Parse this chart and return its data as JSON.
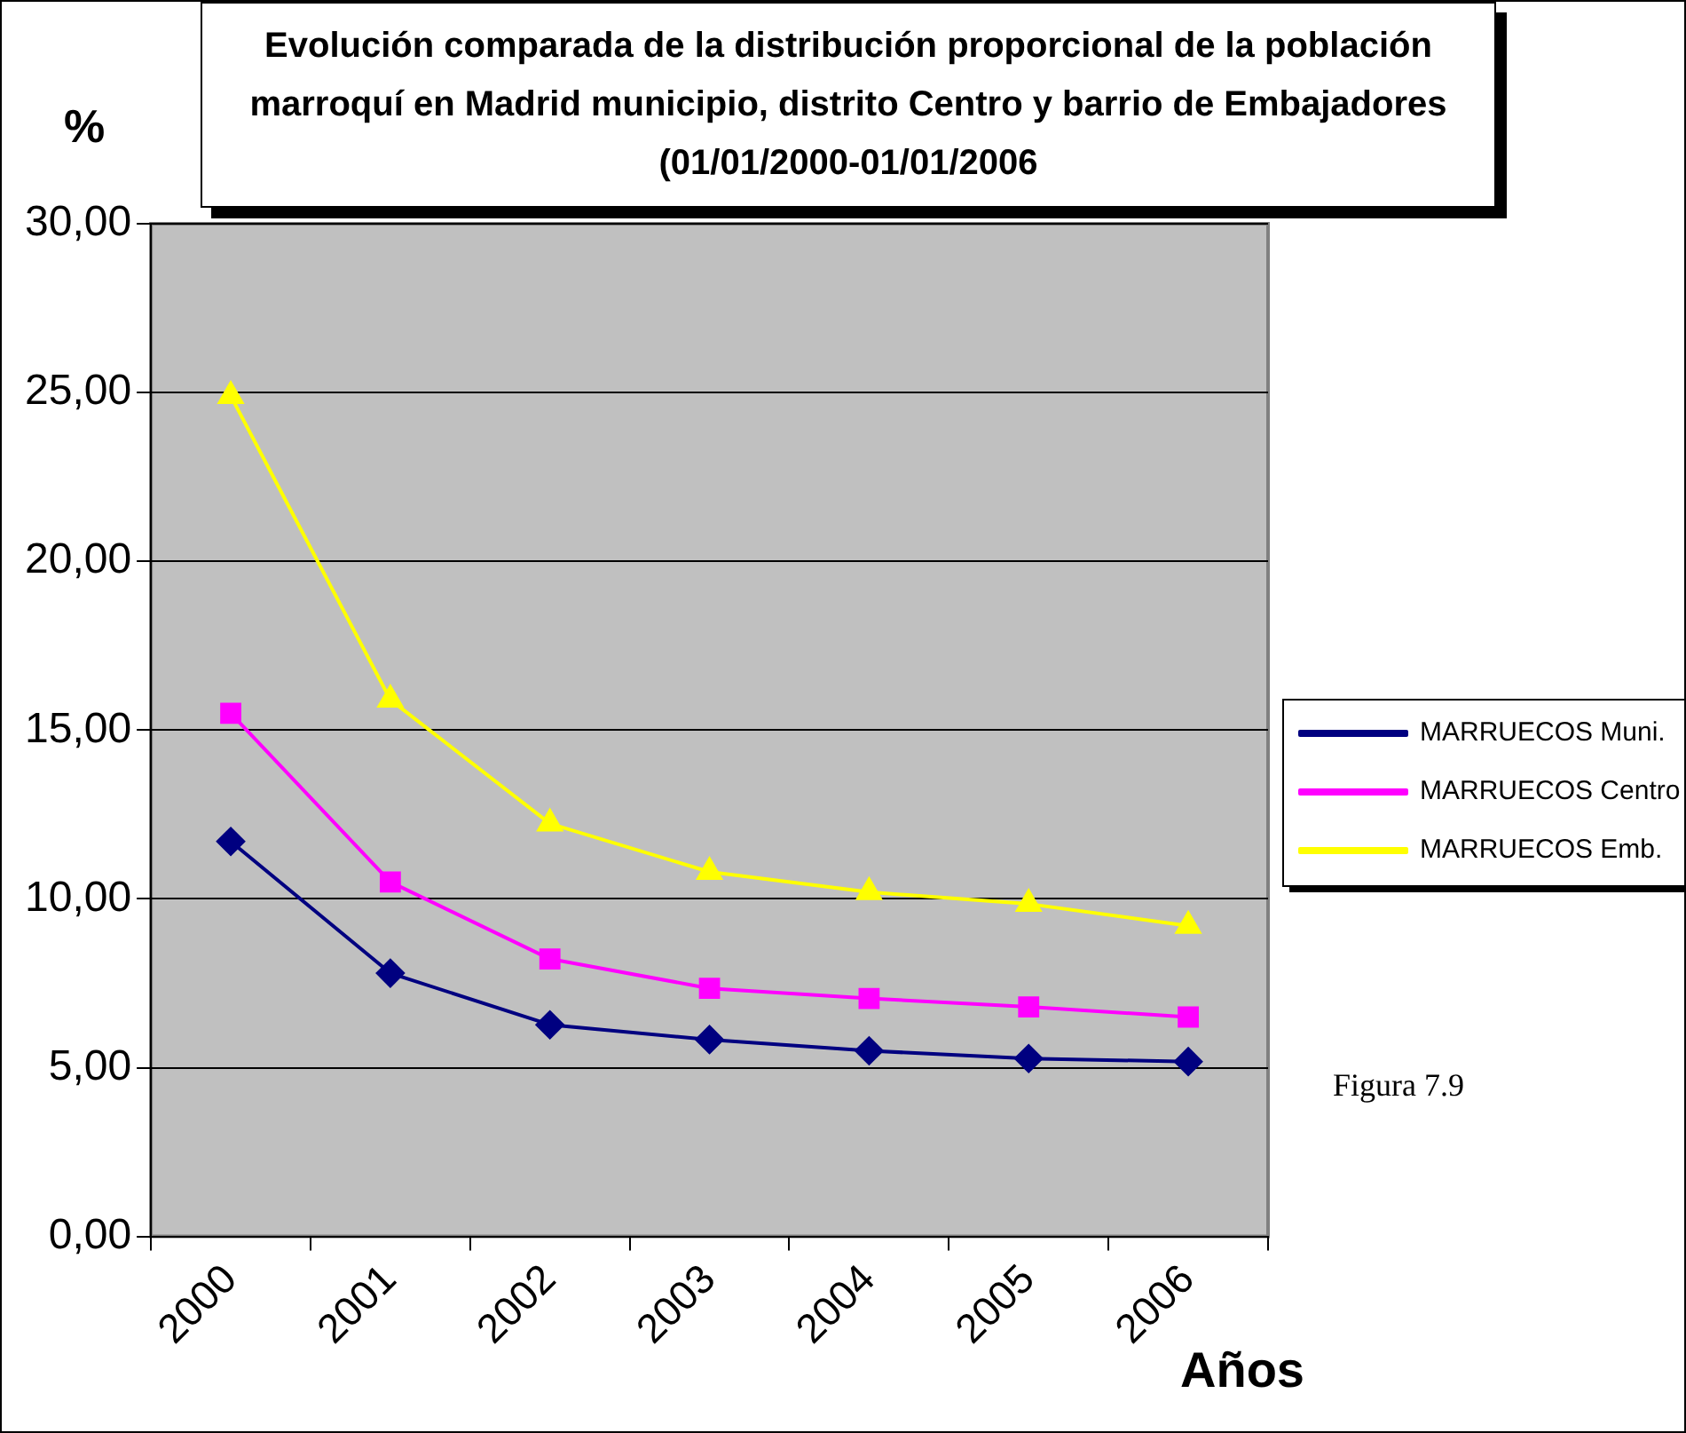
{
  "chart_data": {
    "type": "line",
    "title": "Evolución comparada de la distribución proporcional de la población marroquí en Madrid municipio, distrito Centro y barrio de Embajadores (01/01/2000-01/01/2006",
    "xlabel": "Años",
    "ylabel": "%",
    "categories": [
      "2000",
      "2001",
      "2002",
      "2003",
      "2004",
      "2005",
      "2006"
    ],
    "series": [
      {
        "name": "MARRUECOS Muni.",
        "color": "#000080",
        "marker": "diamond",
        "values": [
          11.7,
          7.8,
          6.27,
          5.83,
          5.5,
          5.27,
          5.18
        ]
      },
      {
        "name": "MARRUECOS Centro",
        "color": "#ff00ff",
        "marker": "square",
        "values": [
          15.5,
          10.5,
          8.22,
          7.35,
          7.05,
          6.8,
          6.5
        ]
      },
      {
        "name": "MARRUECOS Emb.",
        "color": "#ffff00",
        "marker": "triangle",
        "values": [
          24.9,
          15.9,
          12.23,
          10.8,
          10.2,
          9.85,
          9.2
        ]
      }
    ],
    "ylim": [
      0,
      30
    ],
    "yticks": [
      {
        "value": 0,
        "label": "0,00"
      },
      {
        "value": 5,
        "label": "5,00"
      },
      {
        "value": 10,
        "label": "10,00"
      },
      {
        "value": 15,
        "label": "15,00"
      },
      {
        "value": 20,
        "label": "20,00"
      },
      {
        "value": 25,
        "label": "25,00"
      },
      {
        "value": 30,
        "label": "30,00"
      }
    ],
    "grid": "y",
    "legend": "right",
    "line_style": "solid",
    "annotations": [
      "Figura 7.9"
    ]
  }
}
